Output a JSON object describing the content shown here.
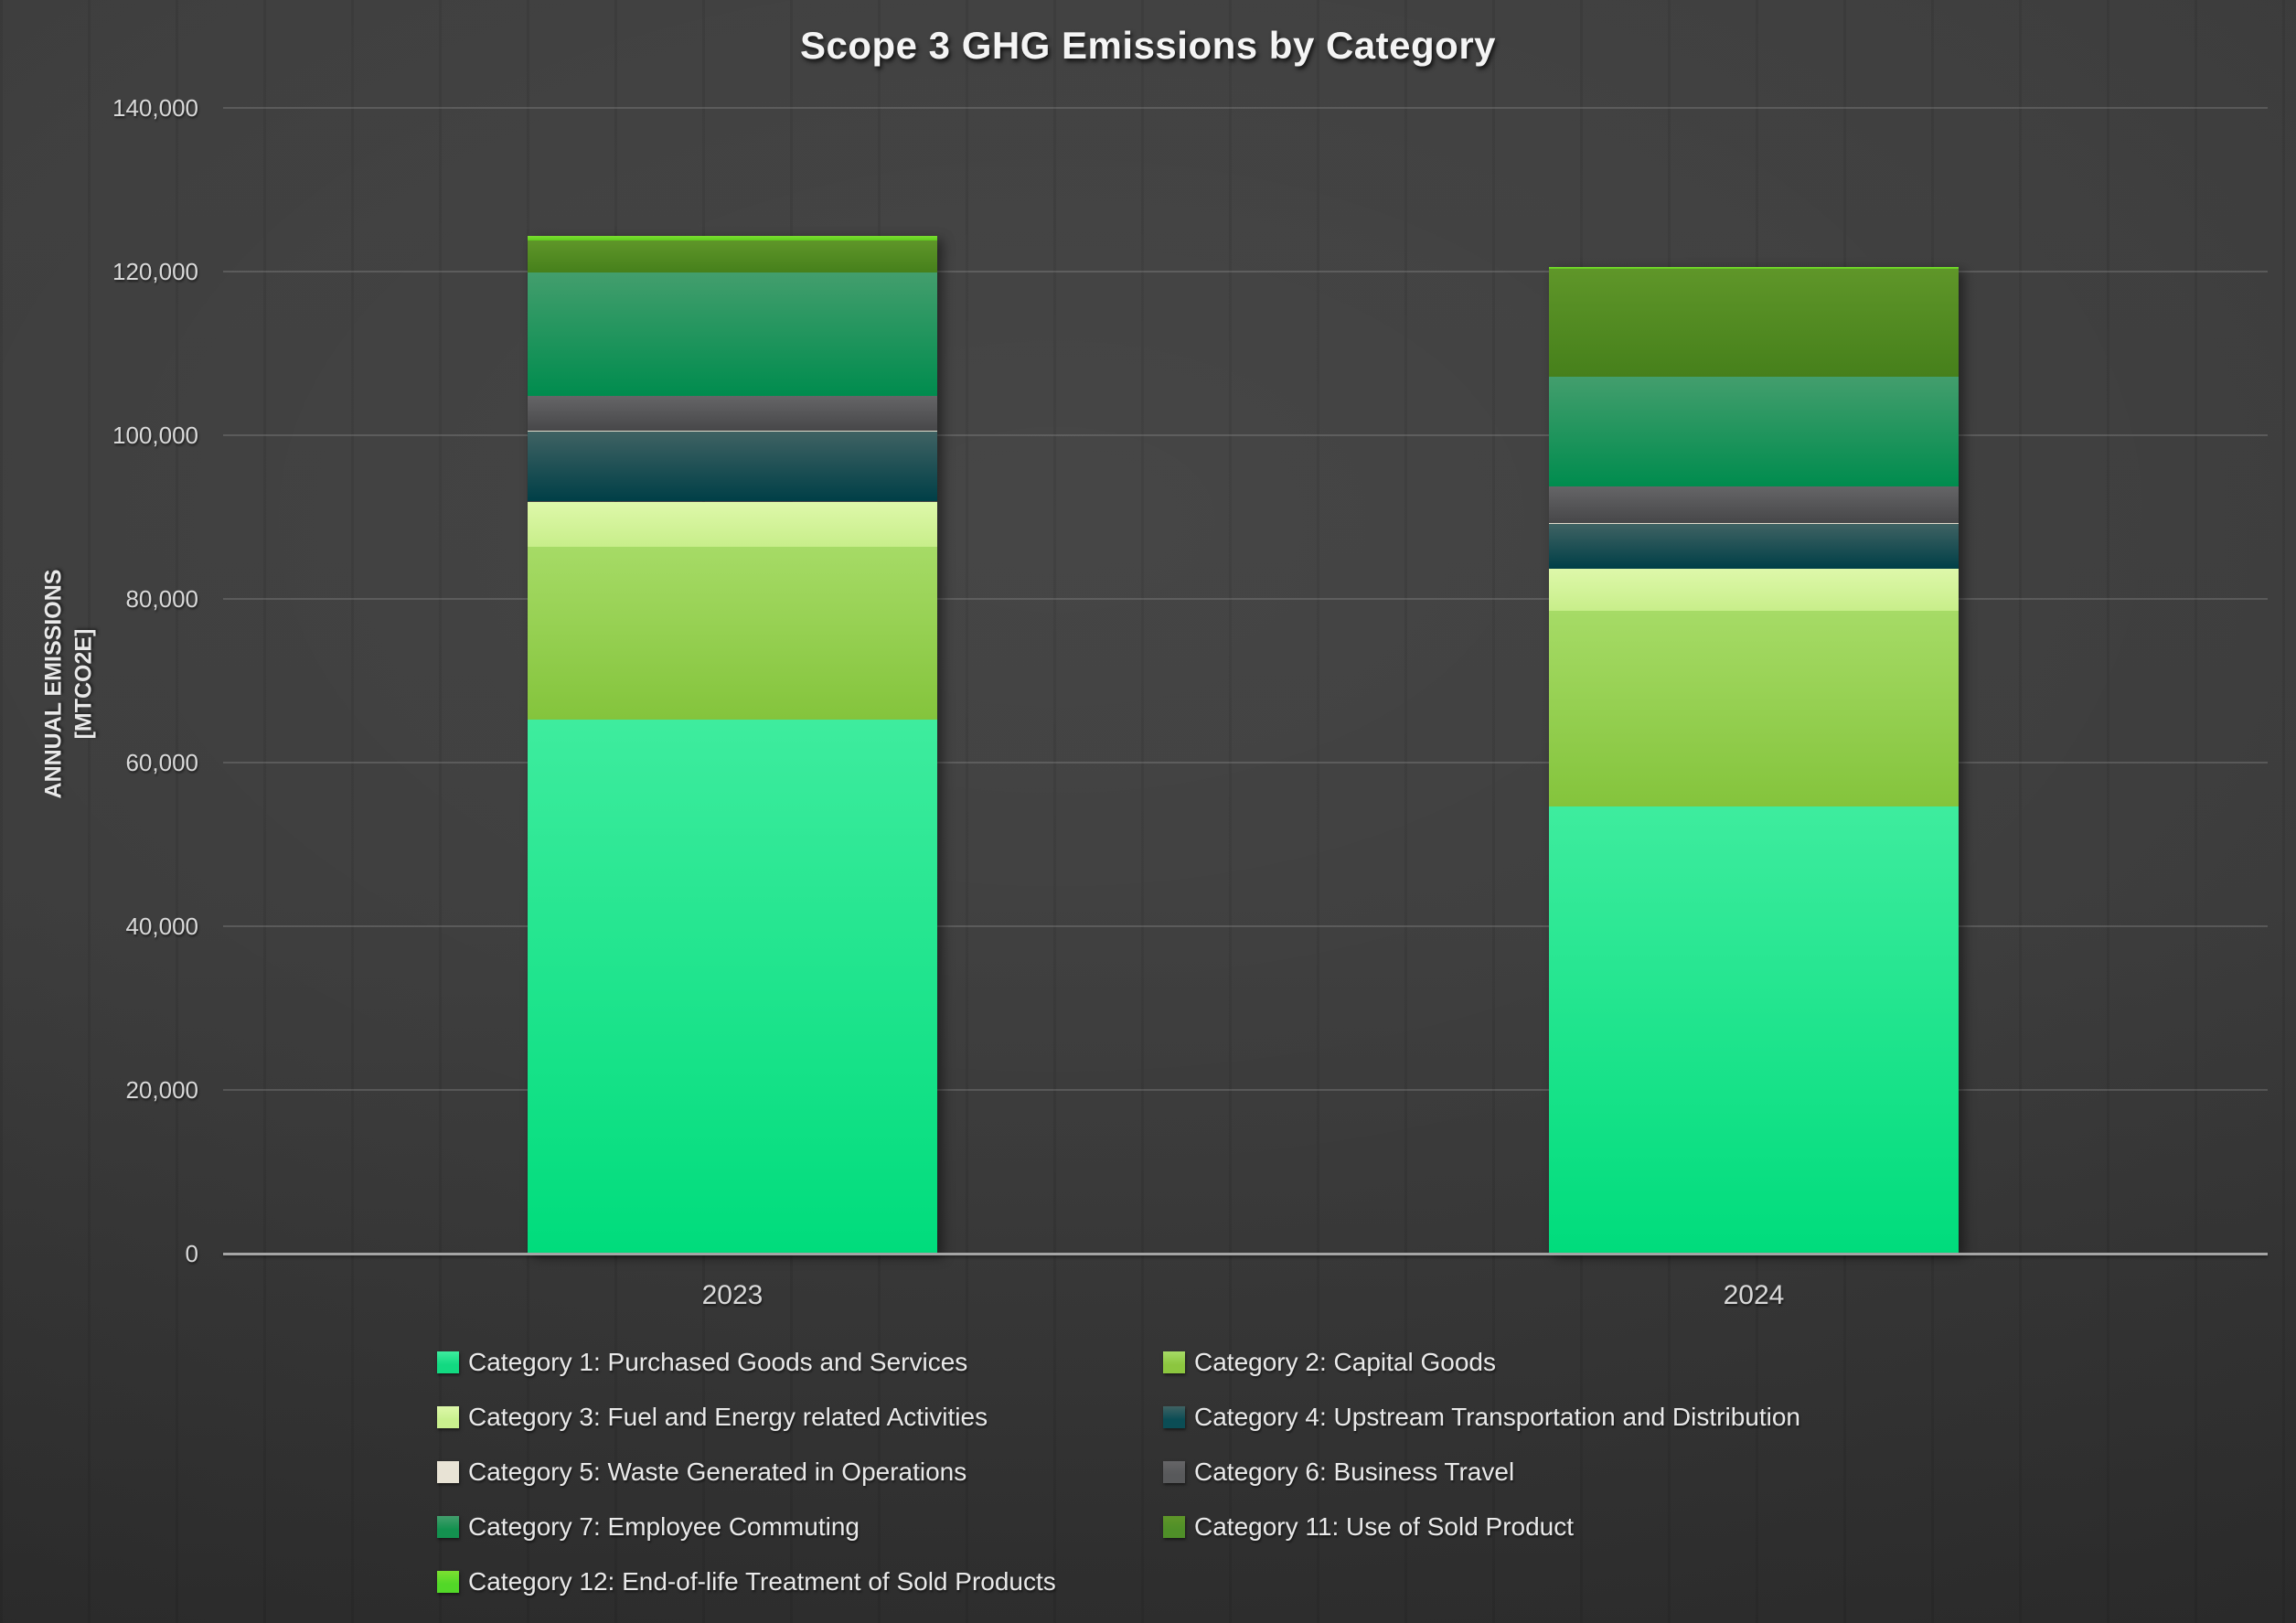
{
  "chart_data": {
    "type": "bar",
    "subtype": "stacked-vertical",
    "title": "Scope 3 GHG Emissions by Category",
    "ylabel_line1": "ANNUAL EMISSIONS",
    "ylabel_line2": "[MTCO2E]",
    "xlabel": "",
    "categories": [
      "2023",
      "2024"
    ],
    "ylim": [
      0,
      140000
    ],
    "ytick_step": 20000,
    "yticks": [
      "0",
      "20,000",
      "40,000",
      "60,000",
      "80,000",
      "100,000",
      "120,000",
      "140,000"
    ],
    "grid": "horizontal",
    "legend_position": "bottom-two-columns",
    "background_color": "#383838",
    "series": [
      {
        "name": "Category 1: Purchased Goods and Services",
        "values": [
          65200,
          54600
        ],
        "color_top": "#3eec9e",
        "color_bottom": "#00dc7c",
        "swatch": "#12d981"
      },
      {
        "name": "Category 2: Capital Goods",
        "values": [
          21200,
          24000
        ],
        "color_top": "#a6db66",
        "color_bottom": "#84c43c",
        "swatch": "#8cc63f"
      },
      {
        "name": "Category 3: Fuel and Energy related Activities",
        "values": [
          5500,
          5100
        ],
        "color_top": "#def8aa",
        "color_bottom": "#c8ee8a",
        "swatch": "#c9f08e"
      },
      {
        "name": "Category 4: Upstream Transportation and Distribution",
        "values": [
          8600,
          5500
        ],
        "color_top": "#3f6263",
        "color_bottom": "#003f47",
        "swatch": "#0b4d55"
      },
      {
        "name": "Category 5: Waste Generated in Operations",
        "values": [
          100,
          100
        ],
        "color_top": "#e9e4d6",
        "color_bottom": "#d9d3c1",
        "swatch": "#e8e3d5"
      },
      {
        "name": "Category 6: Business Travel",
        "values": [
          4200,
          4400
        ],
        "color_top": "#656567",
        "color_bottom": "#474749",
        "swatch": "#58595b"
      },
      {
        "name": "Category 7: Employee Commuting",
        "values": [
          15100,
          13500
        ],
        "color_top": "#439e6d",
        "color_bottom": "#008c4e",
        "swatch": "#13914f"
      },
      {
        "name": "Category 11: Use of Sold Product",
        "values": [
          3900,
          13100
        ],
        "color_top": "#5f9629",
        "color_bottom": "#46801b",
        "swatch": "#4f8f28"
      },
      {
        "name": "Category 12: End-of-life Treatment of Sold Products",
        "values": [
          600,
          300
        ],
        "color_top": "#7cdf31",
        "color_bottom": "#5fcd1d",
        "swatch": "#52d828"
      }
    ]
  }
}
